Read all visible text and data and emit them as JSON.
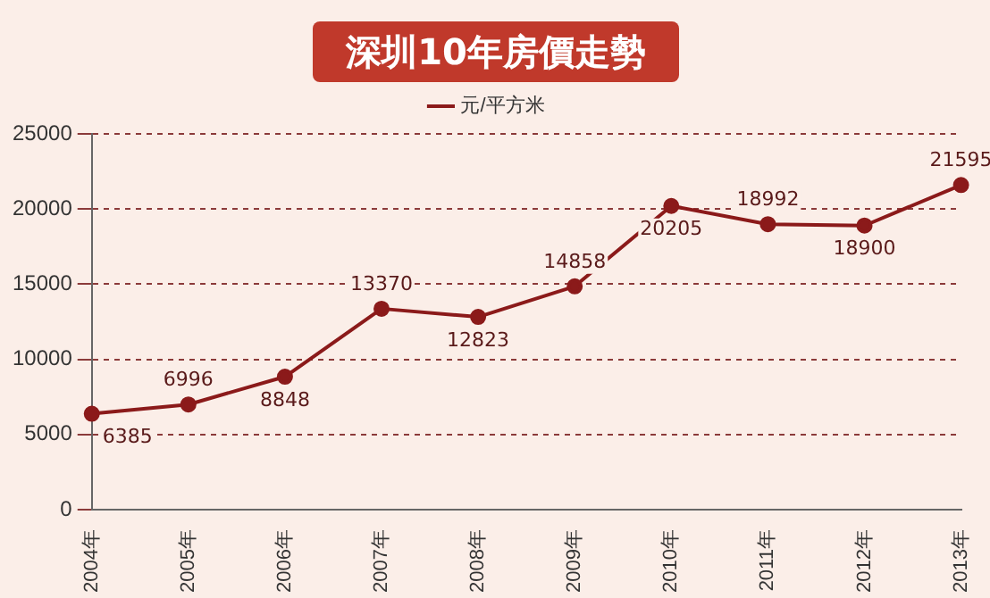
{
  "chart_data": {
    "type": "line",
    "title": "深圳10年房價走勢",
    "categories": [
      "2004年",
      "2005年",
      "2006年",
      "2007年",
      "2008年",
      "2009年",
      "2010年",
      "2011年",
      "2012年",
      "2013年"
    ],
    "series": [
      {
        "name": "元/平方米",
        "color": "#8b1a1a",
        "values": [
          6385,
          6996,
          8848,
          13370,
          12823,
          14858,
          20205,
          18992,
          18900,
          21595
        ]
      }
    ],
    "ylim": [
      0,
      25000
    ],
    "yticks": [
      0,
      5000,
      10000,
      15000,
      20000,
      25000
    ],
    "grid": "y",
    "legend": "top",
    "marker": "circle",
    "line_style": "solid",
    "data_labels": true
  }
}
